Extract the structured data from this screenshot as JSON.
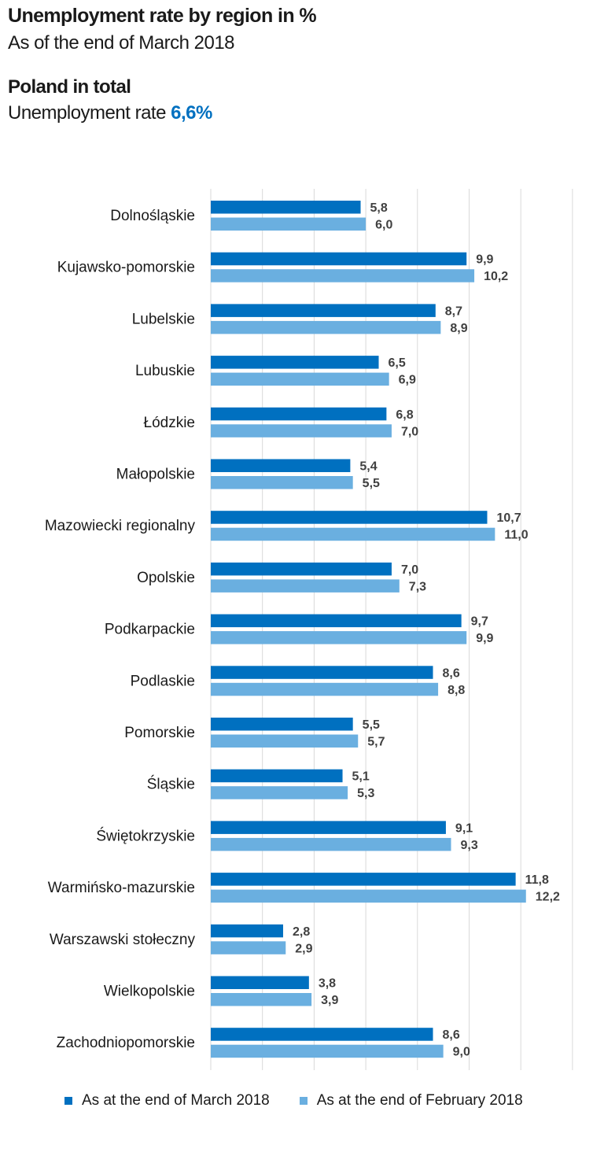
{
  "header": {
    "title": "Unemployment rate by region in %",
    "subtitle": "As of the end of March 2018",
    "total_heading": "Poland in total",
    "total_label": "Unemployment rate",
    "total_value": "6,6%"
  },
  "colors": {
    "march": "#0070c0",
    "february": "#6aafe0",
    "grid": "#d9d9d9",
    "highlight": "#0070c0"
  },
  "chart_data": {
    "type": "bar",
    "orientation": "horizontal",
    "categories": [
      "Dolnośląskie",
      "Kujawsko-pomorskie",
      "Lubelskie",
      "Lubuskie",
      "Łódzkie",
      "Małopolskie",
      "Mazowiecki regionalny",
      "Opolskie",
      "Podkarpackie",
      "Podlaskie",
      "Pomorskie",
      "Śląskie",
      "Świętokrzyskie",
      "Warmińsko-mazurskie",
      "Warszawski stołeczny",
      "Wielkopolskie",
      "Zachodniopomorskie"
    ],
    "series": [
      {
        "name": "As at the end of March 2018",
        "values": [
          5.8,
          9.9,
          8.7,
          6.5,
          6.8,
          5.4,
          10.7,
          7.0,
          9.7,
          8.6,
          5.5,
          5.1,
          9.1,
          11.8,
          2.8,
          3.8,
          8.6
        ],
        "labels": [
          "5,8",
          "9,9",
          "8,7",
          "6,5",
          "6,8",
          "5,4",
          "10,7",
          "7,0",
          "9,7",
          "8,6",
          "5,5",
          "5,1",
          "9,1",
          "11,8",
          "2,8",
          "3,8",
          "8,6"
        ]
      },
      {
        "name": "As at the end of February 2018",
        "values": [
          6.0,
          10.2,
          8.9,
          6.9,
          7.0,
          5.5,
          11.0,
          7.3,
          9.9,
          8.8,
          5.7,
          5.3,
          9.3,
          12.2,
          2.9,
          3.9,
          9.0
        ],
        "labels": [
          "6,0",
          "10,2",
          "8,9",
          "6,9",
          "7,0",
          "5,5",
          "11,0",
          "7,3",
          "9,9",
          "8,8",
          "5,7",
          "5,3",
          "9,3",
          "12,2",
          "2,9",
          "3,9",
          "9,0"
        ]
      }
    ],
    "xlim": [
      0,
      14
    ],
    "grid": true,
    "legend_position": "bottom"
  }
}
